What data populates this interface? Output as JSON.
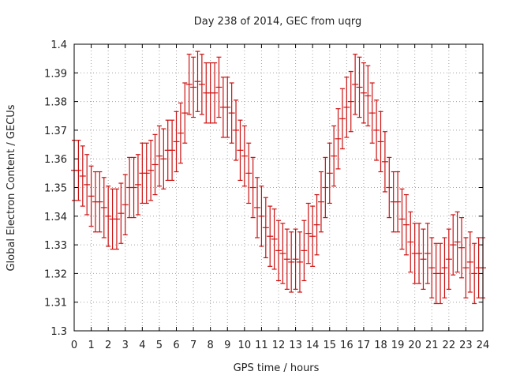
{
  "chart_data": {
    "type": "scatter",
    "title": "Day 238 of 2014, GEC from uqrg",
    "xlabel": "GPS time / hours",
    "ylabel": "Global Electron Content / GECUs",
    "xlim": [
      0,
      24
    ],
    "ylim": [
      1.3,
      1.4
    ],
    "xticks": [
      "0",
      "1",
      "2",
      "3",
      "4",
      "5",
      "6",
      "7",
      "8",
      "9",
      "10",
      "11",
      "12",
      "13",
      "14",
      "15",
      "16",
      "17",
      "18",
      "19",
      "20",
      "21",
      "22",
      "23",
      "24"
    ],
    "yticks": [
      "1.3",
      "1.31",
      "1.32",
      "1.33",
      "1.34",
      "1.35",
      "1.36",
      "1.37",
      "1.38",
      "1.39",
      "1.4"
    ],
    "grid": true,
    "series_color": "#cc1111",
    "series": [
      {
        "x": [
          0,
          0.25,
          0.5,
          0.75,
          1,
          1.25,
          1.5,
          1.75,
          2,
          2.25,
          2.5,
          2.75,
          3,
          3.25,
          3.5,
          3.75,
          4,
          4.25,
          4.5,
          4.75,
          5,
          5.25,
          5.5,
          5.75,
          6,
          6.25,
          6.5,
          6.75,
          7,
          7.25,
          7.5,
          7.75,
          8,
          8.25,
          8.5,
          8.75,
          9,
          9.25,
          9.5,
          9.75,
          10,
          10.25,
          10.5,
          10.75,
          11,
          11.25,
          11.5,
          11.75,
          12,
          12.25,
          12.5,
          12.75,
          13,
          13.25,
          13.5,
          13.75,
          14,
          14.25,
          14.5,
          14.75,
          15,
          15.25,
          15.5,
          15.75,
          16,
          16.25,
          16.5,
          16.75,
          17,
          17.25,
          17.5,
          17.75,
          18,
          18.25,
          18.5,
          18.75,
          19,
          19.25,
          19.5,
          19.75,
          20,
          20.25,
          20.5,
          20.75,
          21,
          21.25,
          21.5,
          21.75,
          22,
          22.25,
          22.5,
          22.75,
          23,
          23.25,
          23.5,
          23.75,
          24
        ],
        "y": [
          1.356,
          1.356,
          1.354,
          1.351,
          1.347,
          1.345,
          1.345,
          1.343,
          1.34,
          1.339,
          1.339,
          1.341,
          1.344,
          1.35,
          1.35,
          1.351,
          1.355,
          1.355,
          1.356,
          1.358,
          1.361,
          1.36,
          1.363,
          1.363,
          1.366,
          1.369,
          1.376,
          1.386,
          1.385,
          1.387,
          1.386,
          1.383,
          1.383,
          1.383,
          1.385,
          1.378,
          1.378,
          1.376,
          1.37,
          1.363,
          1.361,
          1.355,
          1.35,
          1.343,
          1.34,
          1.336,
          1.333,
          1.332,
          1.328,
          1.327,
          1.325,
          1.324,
          1.325,
          1.324,
          1.328,
          1.334,
          1.333,
          1.337,
          1.345,
          1.35,
          1.355,
          1.361,
          1.367,
          1.374,
          1.378,
          1.38,
          1.386,
          1.385,
          1.383,
          1.382,
          1.376,
          1.37,
          1.366,
          1.359,
          1.35,
          1.345,
          1.345,
          1.339,
          1.337,
          1.331,
          1.327,
          1.327,
          1.325,
          1.327,
          1.322,
          1.32,
          1.32,
          1.322,
          1.325,
          1.33,
          1.331,
          1.329,
          1.322,
          1.324,
          1.32,
          1.322,
          1.322
        ],
        "yerr": 0.0105
      }
    ]
  }
}
